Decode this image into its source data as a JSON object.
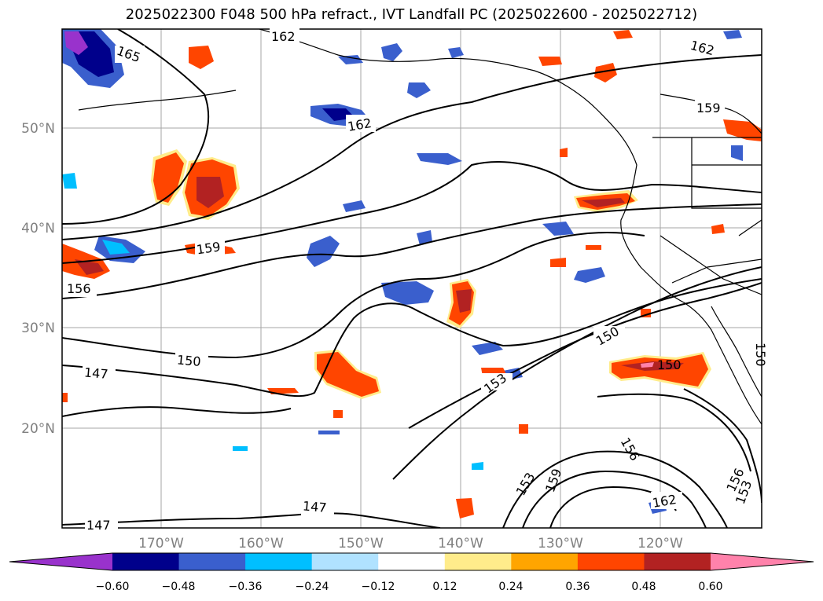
{
  "title": "2025022300 F048 500 hPa refract., IVT Landfall PC (2025022600 - 2025022712)",
  "map": {
    "lon_labels": [
      "170°W",
      "160°W",
      "150°W",
      "140°W",
      "130°W",
      "120°W"
    ],
    "lat_labels": [
      "50°N",
      "40°N",
      "30°N",
      "20°N"
    ],
    "contour_labels": [
      "165",
      "162",
      "162",
      "162",
      "159",
      "159",
      "156",
      "150",
      "150",
      "147",
      "147",
      "147",
      "153",
      "159",
      "153",
      "156",
      "156",
      "153",
      "150",
      "162",
      "150"
    ]
  },
  "colorbar": {
    "ticks": [
      "−0.60",
      "−0.48",
      "−0.36",
      "−0.24",
      "−0.12",
      "0.12",
      "0.24",
      "0.36",
      "0.48",
      "0.60"
    ],
    "colors": [
      "#9932cc",
      "#00008b",
      "#3a5fcd",
      "#00bfff",
      "#b0e2ff",
      "#ffffff",
      "#ffec8b",
      "#ffa500",
      "#ff4500",
      "#b22222",
      "#ff82ab"
    ]
  }
}
